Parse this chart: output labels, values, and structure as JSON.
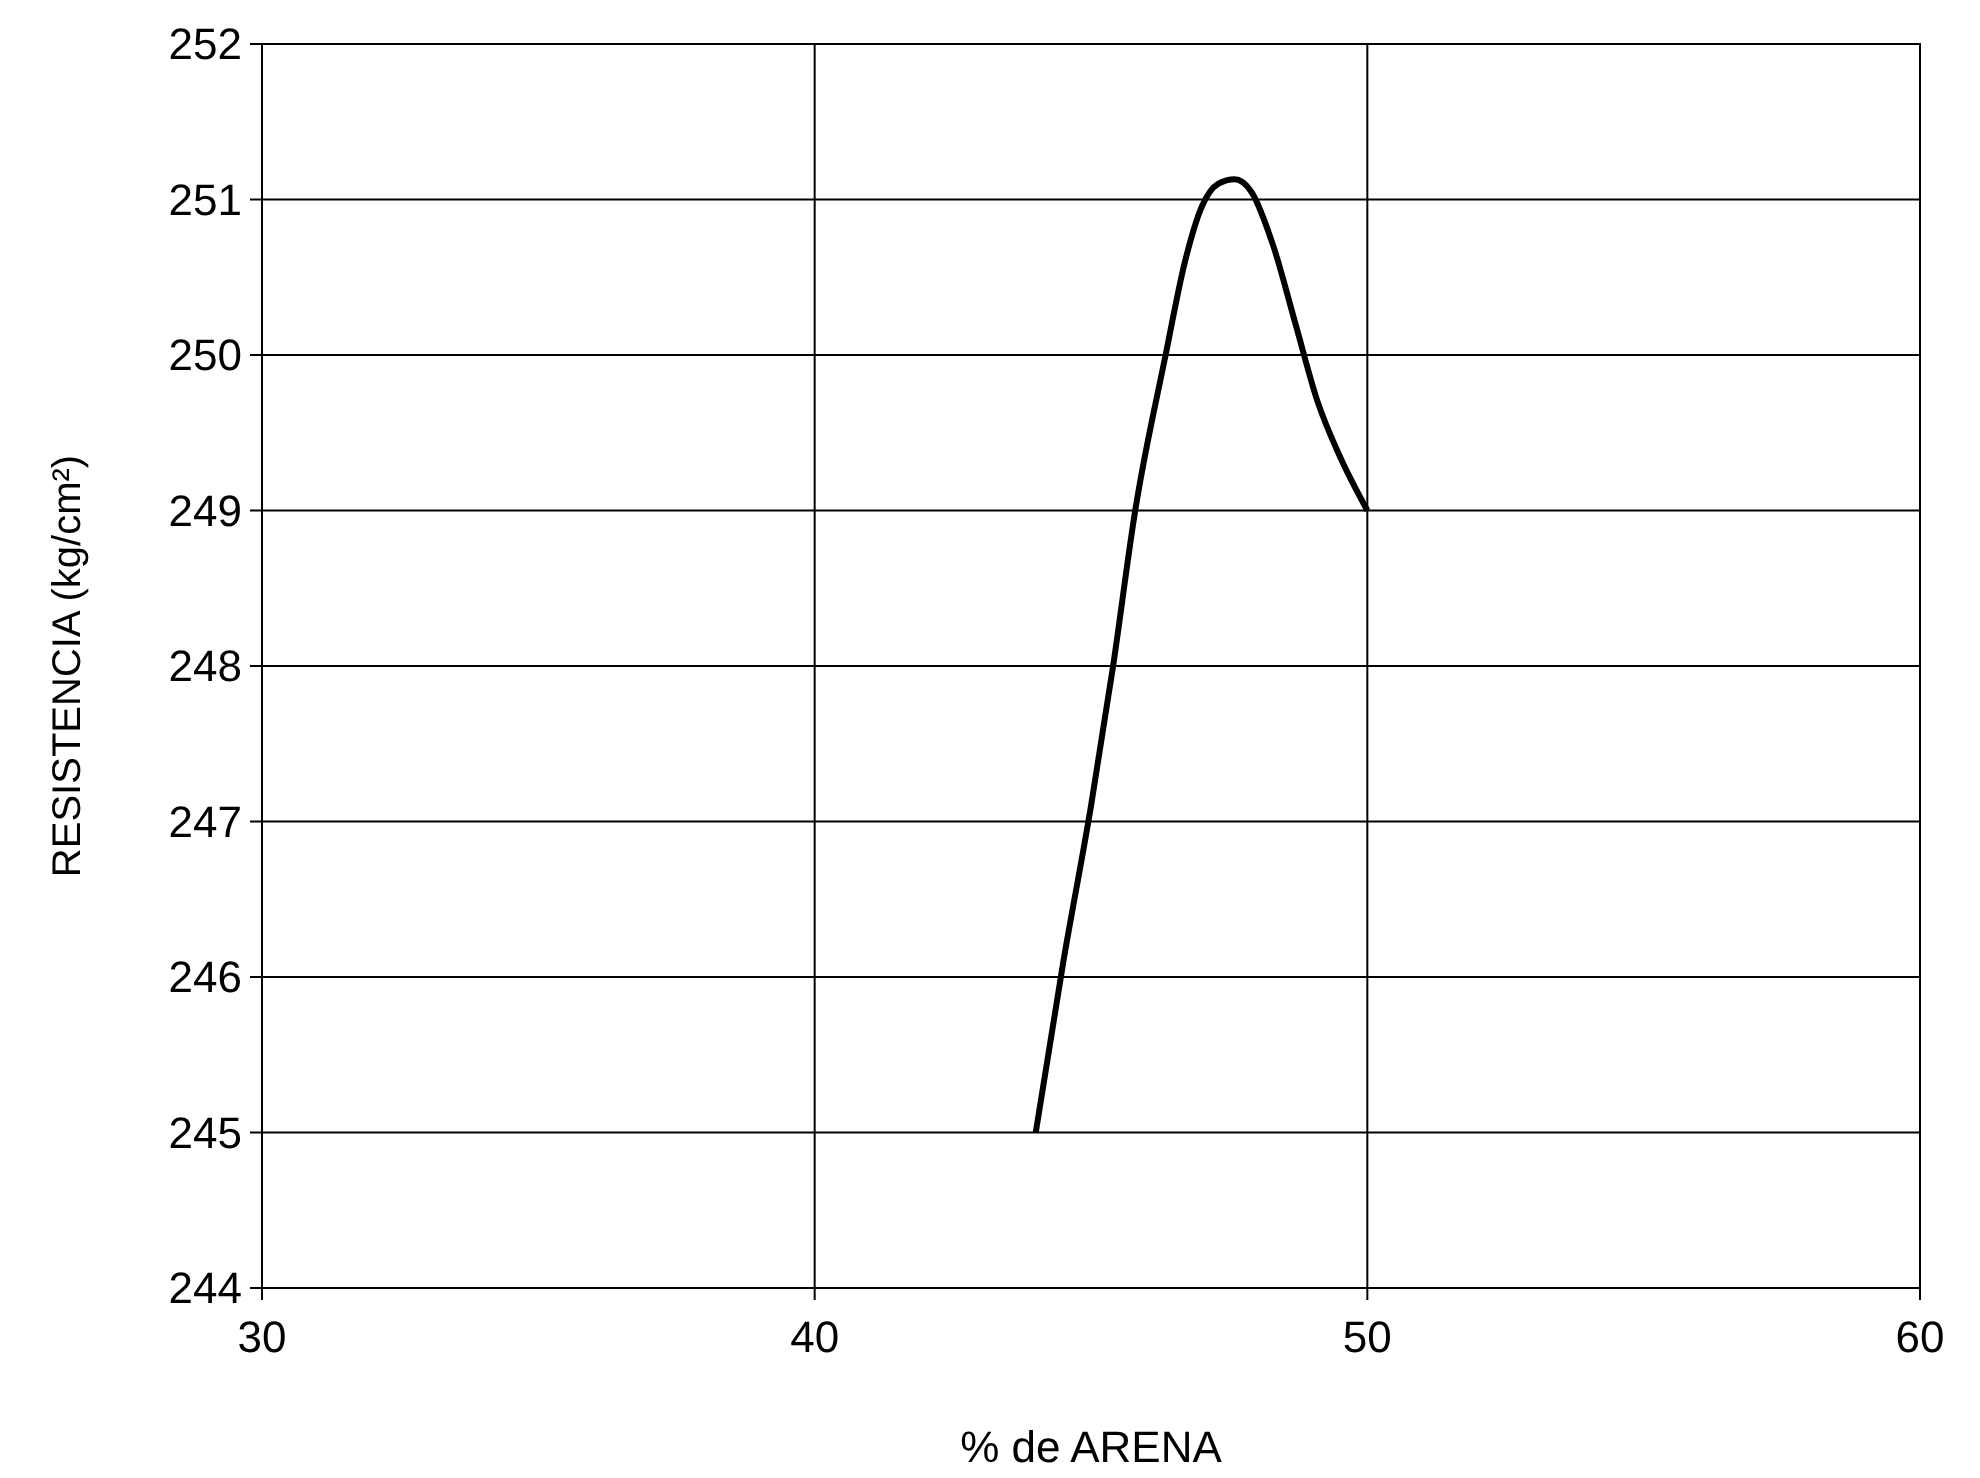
{
  "chart_data": {
    "type": "line",
    "xlabel": "% de ARENA",
    "ylabel": "RESISTENCIA (kg/cm²)",
    "x": [
      44,
      44.5,
      45,
      45.4,
      45.8,
      46.35,
      46.7,
      47.0,
      47.3,
      47.6,
      47.9,
      48.3,
      48.7,
      49.1,
      49.5,
      50
    ],
    "series": [
      {
        "color": "#000000",
        "values": [
          245,
          246.1,
          247.1,
          248,
          249,
          250,
          250.6,
          250.95,
          251.1,
          251.13,
          251.05,
          250.7,
          250.2,
          249.7,
          249.35,
          249
        ]
      }
    ],
    "xlim": [
      30,
      60
    ],
    "xticks": [
      30,
      40,
      50,
      60
    ],
    "ylim": [
      244,
      252
    ],
    "yticks": [
      244,
      245,
      246,
      247,
      248,
      249,
      250,
      251,
      252
    ],
    "grid": true,
    "marker": "none",
    "line_style": "solid"
  }
}
